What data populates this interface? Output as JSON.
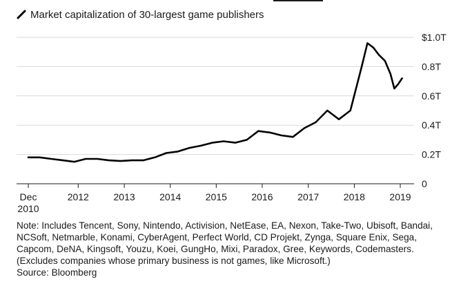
{
  "legend": {
    "label": "Market capitalization of 30-largest game publishers"
  },
  "chart_data": {
    "type": "line",
    "title": "",
    "xlabel": "",
    "ylabel": "",
    "series": [
      {
        "name": "Market capitalization of 30-largest game publishers",
        "color": "#000000",
        "x": [
          "2010-12-01",
          "2011-03-01",
          "2011-06-01",
          "2011-09-01",
          "2011-12-01",
          "2012-03-01",
          "2012-06-01",
          "2012-09-01",
          "2012-12-01",
          "2013-03-01",
          "2013-06-01",
          "2013-09-01",
          "2013-12-01",
          "2014-03-01",
          "2014-06-01",
          "2014-09-01",
          "2014-12-01",
          "2015-03-01",
          "2015-06-01",
          "2015-09-01",
          "2015-12-01",
          "2016-03-01",
          "2016-06-01",
          "2016-09-01",
          "2016-12-01",
          "2017-03-01",
          "2017-06-01",
          "2017-09-01",
          "2017-12-01",
          "2018-01-15",
          "2018-03-01",
          "2018-04-15",
          "2018-06-01",
          "2018-07-15",
          "2018-09-01",
          "2018-10-15",
          "2018-11-15",
          "2018-12-15",
          "2019-01-15"
        ],
        "values": [
          0.18,
          0.18,
          0.17,
          0.16,
          0.15,
          0.17,
          0.17,
          0.16,
          0.155,
          0.16,
          0.16,
          0.18,
          0.21,
          0.22,
          0.245,
          0.26,
          0.28,
          0.29,
          0.28,
          0.3,
          0.36,
          0.35,
          0.33,
          0.32,
          0.38,
          0.42,
          0.5,
          0.44,
          0.5,
          0.65,
          0.8,
          0.96,
          0.93,
          0.88,
          0.84,
          0.75,
          0.65,
          0.68,
          0.72
        ]
      }
    ],
    "xaxis": {
      "start": "2010-12-01",
      "end": "2019-02-01",
      "ticks": [
        {
          "date": "2010-12-01",
          "label": "Dec",
          "sublabel": "2010"
        },
        {
          "date": "2012-01-01",
          "label": "2012"
        },
        {
          "date": "2013-01-01",
          "label": "2013"
        },
        {
          "date": "2014-01-01",
          "label": "2014"
        },
        {
          "date": "2015-01-01",
          "label": "2015"
        },
        {
          "date": "2016-01-01",
          "label": "2016"
        },
        {
          "date": "2017-01-01",
          "label": "2017"
        },
        {
          "date": "2018-01-01",
          "label": "2018"
        },
        {
          "date": "2019-01-01",
          "label": "2019"
        }
      ]
    },
    "yaxis": {
      "position": "right",
      "ylim": [
        0,
        1.0
      ],
      "ticks": [
        {
          "value": 0,
          "label": "0"
        },
        {
          "value": 0.2,
          "label": "0.2T"
        },
        {
          "value": 0.4,
          "label": "0.4T"
        },
        {
          "value": 0.6,
          "label": "0.6T"
        },
        {
          "value": 0.8,
          "label": "0.8T"
        },
        {
          "value": 1.0,
          "label": "$1.0T"
        }
      ]
    },
    "grid": "horizontal"
  },
  "notes": {
    "note": "Note: Includes Tencent, Sony, Nintendo, Activision, NetEase, EA, Nexon, Take-Two, Ubisoft, Bandai, NCSoft, Netmarble, Konami, CyberAgent, Perfect World, CD Projekt, Zynga, Square Enix, Sega, Capcom, DeNA, Kingsoft, Youzu, Koei, GungHo, Mixi, Paradox, Gree, Keywords, Codemasters. (Excludes companies whose primary business is not games, like Microsoft.)",
    "source": "Source: Bloomberg"
  }
}
